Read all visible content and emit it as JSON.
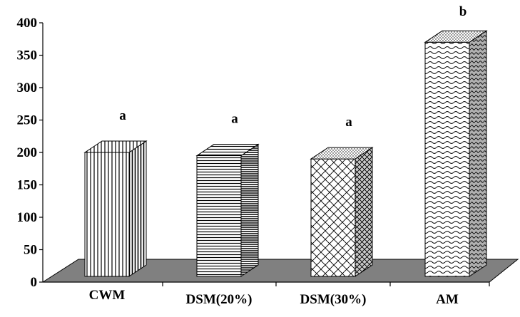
{
  "chart_data": {
    "type": "bar",
    "style": "3d",
    "categories": [
      "CWM",
      "DSM(20%)",
      "DSM(30%)",
      "AM"
    ],
    "values": [
      200,
      195,
      190,
      370
    ],
    "data_labels": [
      "a",
      "a",
      "a",
      "b"
    ],
    "ylim": [
      0,
      400
    ],
    "yticks": [
      0,
      50,
      100,
      150,
      200,
      250,
      300,
      350,
      400
    ],
    "ytick_labels": [
      "0",
      "50",
      "100",
      "150",
      "200",
      "250",
      "300",
      "350",
      "400"
    ],
    "patterns": [
      "vertical-lines",
      "horizontal-lines",
      "crosshatch",
      "wave"
    ],
    "grid": false,
    "legend": "none",
    "colors": {
      "floor": "#808080",
      "bar_fill": "#ffffff",
      "stroke": "#000000"
    }
  }
}
